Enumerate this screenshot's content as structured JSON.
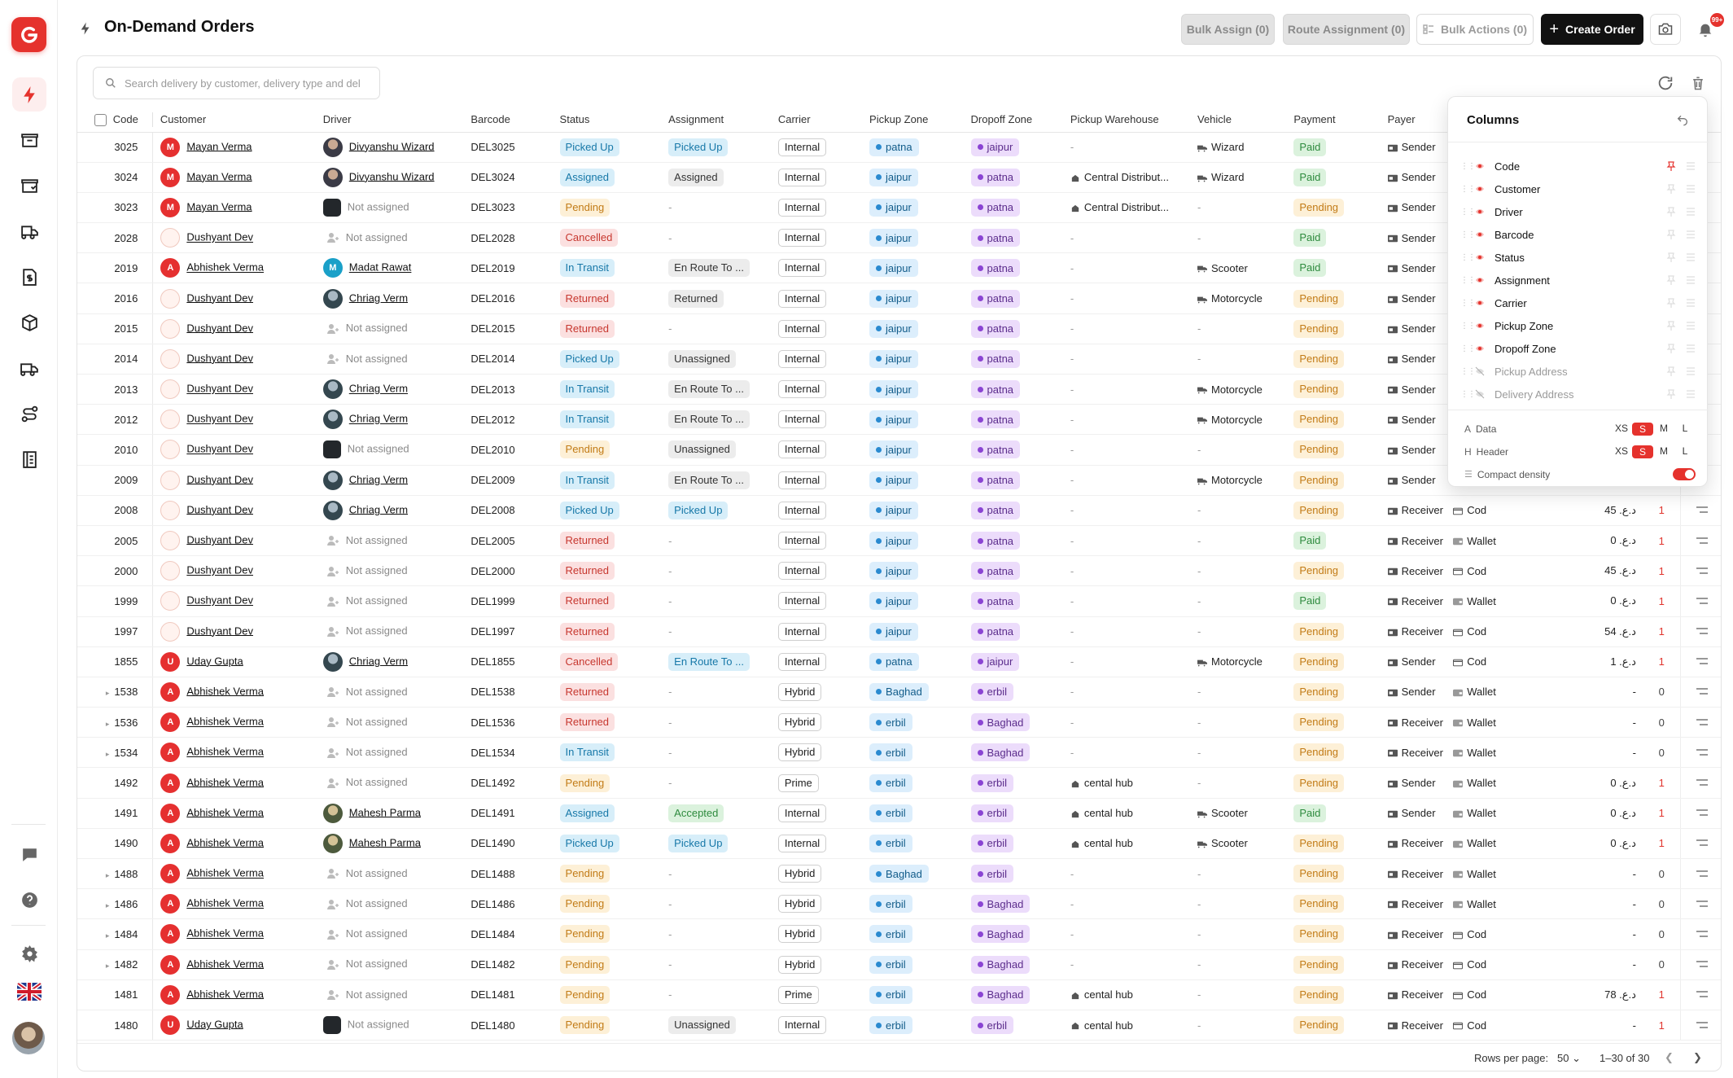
{
  "page": {
    "title": "On-Demand Orders"
  },
  "topbar": {
    "bulk_assign": "Bulk Assign (0)",
    "route_assignment": "Route Assignment (0)",
    "bulk_actions": "Bulk Actions (0)",
    "create_order": "Create Order",
    "notif_badge": "99+"
  },
  "search": {
    "placeholder": "Search delivery by customer, delivery type and del"
  },
  "table": {
    "headers": {
      "code": "Code",
      "customer": "Customer",
      "driver": "Driver",
      "barcode": "Barcode",
      "status": "Status",
      "assignment": "Assignment",
      "carrier": "Carrier",
      "pickup_zone": "Pickup Zone",
      "dropoff_zone": "Dropoff Zone",
      "pickup_warehouse": "Pickup Warehouse",
      "vehicle": "Vehicle",
      "payment": "Payment",
      "payer": "Payer"
    },
    "rows": [
      {
        "expand": false,
        "code": "3025",
        "cust": "Mayan Verma",
        "ci": "M",
        "cs": "red",
        "drv": "Divyanshu Wizard",
        "ds": "photo",
        "bar": "DEL3025",
        "st": "Picked Up",
        "sc": "Picked",
        "asg": "Picked Up",
        "ac": "blue",
        "car": "Internal",
        "pz": "patna",
        "dz": "jaipur",
        "wh": "-",
        "veh": "Wizard",
        "pay": "Paid",
        "payer": "Sender",
        "meth": "",
        "amt": "",
        "cnt": ""
      },
      {
        "expand": false,
        "code": "3024",
        "cust": "Mayan Verma",
        "ci": "M",
        "cs": "red",
        "drv": "Divyanshu Wizard",
        "ds": "photo",
        "bar": "DEL3024",
        "st": "Assigned",
        "sc": "Assigned",
        "asg": "Assigned",
        "ac": "gray",
        "car": "Internal",
        "pz": "jaipur",
        "dz": "patna",
        "wh": "Central Distribut...",
        "veh": "Wizard",
        "pay": "Paid",
        "payer": "Sender",
        "meth": "",
        "amt": "",
        "cnt": ""
      },
      {
        "expand": false,
        "code": "3023",
        "cust": "Mayan Verma",
        "ci": "M",
        "cs": "red",
        "drv": "Not assigned",
        "ds": "dark",
        "bar": "DEL3023",
        "st": "Pending",
        "sc": "Pending",
        "asg": "-",
        "ac": "",
        "car": "Internal",
        "pz": "jaipur",
        "dz": "patna",
        "wh": "Central Distribut...",
        "veh": "-",
        "pay": "Pending",
        "payer": "Sender",
        "meth": "",
        "amt": "",
        "cnt": ""
      },
      {
        "expand": false,
        "code": "2028",
        "cust": "Dushyant Dev",
        "ci": "",
        "cs": "pl",
        "drv": "Not assigned",
        "ds": "ghost",
        "bar": "DEL2028",
        "st": "Cancelled",
        "sc": "Cancelled",
        "asg": "-",
        "ac": "",
        "car": "Internal",
        "pz": "jaipur",
        "dz": "patna",
        "wh": "-",
        "veh": "-",
        "pay": "Paid",
        "payer": "Sender",
        "meth": "",
        "amt": "",
        "cnt": ""
      },
      {
        "expand": false,
        "code": "2019",
        "cust": "Abhishek Verma",
        "ci": "A",
        "cs": "red",
        "drv": "Madat Rawat",
        "ds": "teal",
        "bar": "DEL2019",
        "st": "In Transit",
        "sc": "Transit",
        "asg": "En Route To ...",
        "ac": "gray",
        "car": "Internal",
        "pz": "jaipur",
        "dz": "patna",
        "wh": "-",
        "veh": "Scooter",
        "pay": "Paid",
        "payer": "Sender",
        "meth": "",
        "amt": "",
        "cnt": ""
      },
      {
        "expand": false,
        "code": "2016",
        "cust": "Dushyant Dev",
        "ci": "",
        "cs": "pl",
        "drv": "Chriag Verm",
        "ds": "pinfo",
        "bar": "DEL2016",
        "st": "Returned",
        "sc": "Returned",
        "asg": "Returned",
        "ac": "gray",
        "car": "Internal",
        "pz": "jaipur",
        "dz": "patna",
        "wh": "-",
        "veh": "Motorcycle",
        "pay": "Pending",
        "payer": "Sender",
        "meth": "",
        "amt": "",
        "cnt": ""
      },
      {
        "expand": false,
        "code": "2015",
        "cust": "Dushyant Dev",
        "ci": "",
        "cs": "pl",
        "drv": "Not assigned",
        "ds": "ghost",
        "bar": "DEL2015",
        "st": "Returned",
        "sc": "Returned",
        "asg": "-",
        "ac": "",
        "car": "Internal",
        "pz": "jaipur",
        "dz": "patna",
        "wh": "-",
        "veh": "-",
        "pay": "Pending",
        "payer": "Sender",
        "meth": "",
        "amt": "",
        "cnt": ""
      },
      {
        "expand": false,
        "code": "2014",
        "cust": "Dushyant Dev",
        "ci": "",
        "cs": "pl",
        "drv": "Not assigned",
        "ds": "ghost",
        "bar": "DEL2014",
        "st": "Picked Up",
        "sc": "Picked",
        "asg": "Unassigned",
        "ac": "gray",
        "car": "Internal",
        "pz": "jaipur",
        "dz": "patna",
        "wh": "-",
        "veh": "-",
        "pay": "Pending",
        "payer": "Sender",
        "meth": "",
        "amt": "",
        "cnt": ""
      },
      {
        "expand": false,
        "code": "2013",
        "cust": "Dushyant Dev",
        "ci": "",
        "cs": "pl",
        "drv": "Chriag Verm",
        "ds": "pinfo",
        "bar": "DEL2013",
        "st": "In Transit",
        "sc": "Transit",
        "asg": "En Route To ...",
        "ac": "gray",
        "car": "Internal",
        "pz": "jaipur",
        "dz": "patna",
        "wh": "-",
        "veh": "Motorcycle",
        "pay": "Pending",
        "payer": "Sender",
        "meth": "",
        "amt": "",
        "cnt": ""
      },
      {
        "expand": false,
        "code": "2012",
        "cust": "Dushyant Dev",
        "ci": "",
        "cs": "pl",
        "drv": "Chriag Verm",
        "ds": "pinfo",
        "bar": "DEL2012",
        "st": "In Transit",
        "sc": "Transit",
        "asg": "En Route To ...",
        "ac": "gray",
        "car": "Internal",
        "pz": "jaipur",
        "dz": "patna",
        "wh": "-",
        "veh": "Motorcycle",
        "pay": "Pending",
        "payer": "Sender",
        "meth": "",
        "amt": "",
        "cnt": ""
      },
      {
        "expand": false,
        "code": "2010",
        "cust": "Dushyant Dev",
        "ci": "",
        "cs": "pl",
        "drv": "Not assigned",
        "ds": "dark",
        "bar": "DEL2010",
        "st": "Pending",
        "sc": "Pending",
        "asg": "Unassigned",
        "ac": "gray",
        "car": "Internal",
        "pz": "jaipur",
        "dz": "patna",
        "wh": "-",
        "veh": "-",
        "pay": "Pending",
        "payer": "Sender",
        "meth": "",
        "amt": "",
        "cnt": ""
      },
      {
        "expand": false,
        "code": "2009",
        "cust": "Dushyant Dev",
        "ci": "",
        "cs": "pl",
        "drv": "Chriag Verm",
        "ds": "pinfo",
        "bar": "DEL2009",
        "st": "In Transit",
        "sc": "Transit",
        "asg": "En Route To ...",
        "ac": "gray",
        "car": "Internal",
        "pz": "jaipur",
        "dz": "patna",
        "wh": "-",
        "veh": "Motorcycle",
        "pay": "Pending",
        "payer": "Sender",
        "meth": "",
        "amt": "",
        "cnt": ""
      },
      {
        "expand": false,
        "code": "2008",
        "cust": "Dushyant Dev",
        "ci": "",
        "cs": "pl",
        "drv": "Chriag Verm",
        "ds": "pinfo",
        "bar": "DEL2008",
        "st": "Picked Up",
        "sc": "Picked",
        "asg": "Picked Up",
        "ac": "blue",
        "car": "Internal",
        "pz": "jaipur",
        "dz": "patna",
        "wh": "-",
        "veh": "-",
        "pay": "Pending",
        "payer": "Receiver",
        "meth": "Cod",
        "amt": "45 .د.ع",
        "cnt": "1"
      },
      {
        "expand": false,
        "code": "2005",
        "cust": "Dushyant Dev",
        "ci": "",
        "cs": "pl",
        "drv": "Not assigned",
        "ds": "ghost",
        "bar": "DEL2005",
        "st": "Returned",
        "sc": "Returned",
        "asg": "-",
        "ac": "",
        "car": "Internal",
        "pz": "jaipur",
        "dz": "patna",
        "wh": "-",
        "veh": "-",
        "pay": "Paid",
        "payer": "Receiver",
        "meth": "Wallet",
        "amt": "0 .د.ع",
        "cnt": "1"
      },
      {
        "expand": false,
        "code": "2000",
        "cust": "Dushyant Dev",
        "ci": "",
        "cs": "pl",
        "drv": "Not assigned",
        "ds": "ghost",
        "bar": "DEL2000",
        "st": "Returned",
        "sc": "Returned",
        "asg": "-",
        "ac": "",
        "car": "Internal",
        "pz": "jaipur",
        "dz": "patna",
        "wh": "-",
        "veh": "-",
        "pay": "Pending",
        "payer": "Receiver",
        "meth": "Cod",
        "amt": "45 .د.ع",
        "cnt": "1"
      },
      {
        "expand": false,
        "code": "1999",
        "cust": "Dushyant Dev",
        "ci": "",
        "cs": "pl",
        "drv": "Not assigned",
        "ds": "ghost",
        "bar": "DEL1999",
        "st": "Returned",
        "sc": "Returned",
        "asg": "-",
        "ac": "",
        "car": "Internal",
        "pz": "jaipur",
        "dz": "patna",
        "wh": "-",
        "veh": "-",
        "pay": "Paid",
        "payer": "Receiver",
        "meth": "Wallet",
        "amt": "0 .د.ع",
        "cnt": "1"
      },
      {
        "expand": false,
        "code": "1997",
        "cust": "Dushyant Dev",
        "ci": "",
        "cs": "pl",
        "drv": "Not assigned",
        "ds": "ghost",
        "bar": "DEL1997",
        "st": "Returned",
        "sc": "Returned",
        "asg": "-",
        "ac": "",
        "car": "Internal",
        "pz": "jaipur",
        "dz": "patna",
        "wh": "-",
        "veh": "-",
        "pay": "Pending",
        "payer": "Receiver",
        "meth": "Cod",
        "amt": "54 .د.ع",
        "cnt": "1"
      },
      {
        "expand": false,
        "code": "1855",
        "cust": "Uday Gupta",
        "ci": "U",
        "cs": "red",
        "drv": "Chriag Verm",
        "ds": "pinfo",
        "bar": "DEL1855",
        "st": "Cancelled",
        "sc": "Cancelled",
        "asg": "En Route To ...",
        "ac": "blue",
        "car": "Internal",
        "pz": "patna",
        "dz": "jaipur",
        "wh": "-",
        "veh": "Motorcycle",
        "pay": "Pending",
        "payer": "Sender",
        "meth": "Cod",
        "amt": "1 .د.ع",
        "cnt": "1"
      },
      {
        "expand": true,
        "code": "1538",
        "cust": "Abhishek Verma",
        "ci": "A",
        "cs": "red",
        "drv": "Not assigned",
        "ds": "ghost",
        "bar": "DEL1538",
        "st": "Returned",
        "sc": "Returned",
        "asg": "-",
        "ac": "",
        "car": "Hybrid",
        "pz": "Baghad",
        "dz": "erbil",
        "wh": "-",
        "veh": "-",
        "pay": "Pending",
        "payer": "Sender",
        "meth": "Wallet",
        "amt": "-",
        "cnt": "0"
      },
      {
        "expand": true,
        "code": "1536",
        "cust": "Abhishek Verma",
        "ci": "A",
        "cs": "red",
        "drv": "Not assigned",
        "ds": "ghost",
        "bar": "DEL1536",
        "st": "Returned",
        "sc": "Returned",
        "asg": "-",
        "ac": "",
        "car": "Hybrid",
        "pz": "erbil",
        "dz": "Baghad",
        "wh": "-",
        "veh": "-",
        "pay": "Pending",
        "payer": "Receiver",
        "meth": "Wallet",
        "amt": "-",
        "cnt": "0"
      },
      {
        "expand": true,
        "code": "1534",
        "cust": "Abhishek Verma",
        "ci": "A",
        "cs": "red",
        "drv": "Not assigned",
        "ds": "ghost",
        "bar": "DEL1534",
        "st": "In Transit",
        "sc": "Transit",
        "asg": "-",
        "ac": "",
        "car": "Hybrid",
        "pz": "erbil",
        "dz": "Baghad",
        "wh": "-",
        "veh": "-",
        "pay": "Pending",
        "payer": "Receiver",
        "meth": "Wallet",
        "amt": "-",
        "cnt": "0"
      },
      {
        "expand": false,
        "code": "1492",
        "cust": "Abhishek Verma",
        "ci": "A",
        "cs": "red",
        "drv": "Not assigned",
        "ds": "ghost",
        "bar": "DEL1492",
        "st": "Pending",
        "sc": "Pending",
        "asg": "-",
        "ac": "",
        "car": "Prime",
        "pz": "erbil",
        "dz": "erbil",
        "wh": "cental hub",
        "veh": "-",
        "pay": "Pending",
        "payer": "Sender",
        "meth": "Wallet",
        "amt": "0 .د.ع",
        "cnt": "1"
      },
      {
        "expand": false,
        "code": "1491",
        "cust": "Abhishek Verma",
        "ci": "A",
        "cs": "red",
        "drv": "Mahesh Parma",
        "ds": "land",
        "bar": "DEL1491",
        "st": "Assigned",
        "sc": "Assigned",
        "asg": "Accepted",
        "ac": "green",
        "car": "Internal",
        "pz": "erbil",
        "dz": "erbil",
        "wh": "cental hub",
        "veh": "Scooter",
        "pay": "Paid",
        "payer": "Sender",
        "meth": "Wallet",
        "amt": "0 .د.ع",
        "cnt": "1"
      },
      {
        "expand": false,
        "code": "1490",
        "cust": "Abhishek Verma",
        "ci": "A",
        "cs": "red",
        "drv": "Mahesh Parma",
        "ds": "land",
        "bar": "DEL1490",
        "st": "Picked Up",
        "sc": "Picked",
        "asg": "Picked Up",
        "ac": "blue",
        "car": "Internal",
        "pz": "erbil",
        "dz": "erbil",
        "wh": "cental hub",
        "veh": "Scooter",
        "pay": "Pending",
        "payer": "Receiver",
        "meth": "Wallet",
        "amt": "0 .د.ع",
        "cnt": "1"
      },
      {
        "expand": true,
        "code": "1488",
        "cust": "Abhishek Verma",
        "ci": "A",
        "cs": "red",
        "drv": "Not assigned",
        "ds": "ghost",
        "bar": "DEL1488",
        "st": "Pending",
        "sc": "Pending",
        "asg": "-",
        "ac": "",
        "car": "Hybrid",
        "pz": "Baghad",
        "dz": "erbil",
        "wh": "-",
        "veh": "-",
        "pay": "Pending",
        "payer": "Receiver",
        "meth": "Wallet",
        "amt": "-",
        "cnt": "0"
      },
      {
        "expand": true,
        "code": "1486",
        "cust": "Abhishek Verma",
        "ci": "A",
        "cs": "red",
        "drv": "Not assigned",
        "ds": "ghost",
        "bar": "DEL1486",
        "st": "Pending",
        "sc": "Pending",
        "asg": "-",
        "ac": "",
        "car": "Hybrid",
        "pz": "erbil",
        "dz": "Baghad",
        "wh": "-",
        "veh": "-",
        "pay": "Pending",
        "payer": "Receiver",
        "meth": "Wallet",
        "amt": "-",
        "cnt": "0"
      },
      {
        "expand": true,
        "code": "1484",
        "cust": "Abhishek Verma",
        "ci": "A",
        "cs": "red",
        "drv": "Not assigned",
        "ds": "ghost",
        "bar": "DEL1484",
        "st": "Pending",
        "sc": "Pending",
        "asg": "-",
        "ac": "",
        "car": "Hybrid",
        "pz": "erbil",
        "dz": "Baghad",
        "wh": "-",
        "veh": "-",
        "pay": "Pending",
        "payer": "Receiver",
        "meth": "Cod",
        "amt": "-",
        "cnt": "0"
      },
      {
        "expand": true,
        "code": "1482",
        "cust": "Abhishek Verma",
        "ci": "A",
        "cs": "red",
        "drv": "Not assigned",
        "ds": "ghost",
        "bar": "DEL1482",
        "st": "Pending",
        "sc": "Pending",
        "asg": "-",
        "ac": "",
        "car": "Hybrid",
        "pz": "erbil",
        "dz": "Baghad",
        "wh": "-",
        "veh": "-",
        "pay": "Pending",
        "payer": "Receiver",
        "meth": "Cod",
        "amt": "-",
        "cnt": "0"
      },
      {
        "expand": false,
        "code": "1481",
        "cust": "Abhishek Verma",
        "ci": "A",
        "cs": "red",
        "drv": "Not assigned",
        "ds": "ghost",
        "bar": "DEL1481",
        "st": "Pending",
        "sc": "Pending",
        "asg": "-",
        "ac": "",
        "car": "Prime",
        "pz": "erbil",
        "dz": "Baghad",
        "wh": "cental hub",
        "veh": "-",
        "pay": "Pending",
        "payer": "Receiver",
        "meth": "Cod",
        "amt": "78 .د.ع",
        "cnt": "1"
      },
      {
        "expand": false,
        "code": "1480",
        "cust": "Uday Gupta",
        "ci": "U",
        "cs": "red",
        "drv": "Not assigned",
        "ds": "dark",
        "bar": "DEL1480",
        "st": "Pending",
        "sc": "Pending",
        "asg": "Unassigned",
        "ac": "gray",
        "car": "Internal",
        "pz": "erbil",
        "dz": "erbil",
        "wh": "cental hub",
        "veh": "-",
        "pay": "Pending",
        "payer": "Receiver",
        "meth": "Cod",
        "amt": "-",
        "cnt": "1"
      }
    ]
  },
  "columns_panel": {
    "title": "Columns",
    "items": [
      {
        "label": "Code",
        "visible": true
      },
      {
        "label": "Customer",
        "visible": true
      },
      {
        "label": "Driver",
        "visible": true
      },
      {
        "label": "Barcode",
        "visible": true
      },
      {
        "label": "Status",
        "visible": true
      },
      {
        "label": "Assignment",
        "visible": true
      },
      {
        "label": "Carrier",
        "visible": true
      },
      {
        "label": "Pickup Zone",
        "visible": true
      },
      {
        "label": "Dropoff Zone",
        "visible": true
      },
      {
        "label": "Pickup Address",
        "visible": false
      },
      {
        "label": "Delivery Address",
        "visible": false
      }
    ],
    "data_label": "Data",
    "header_label": "Header",
    "sizes": [
      "XS",
      "S",
      "M",
      "L"
    ],
    "data_size": "S",
    "header_size": "S",
    "compact_label": "Compact density",
    "compact_on": true
  },
  "footer": {
    "rows_per_page_label": "Rows per page:",
    "rows_per_page": "50",
    "range": "1–30 of 30"
  },
  "colors": {
    "brand": "#e5322d",
    "primary_button": "#111111"
  }
}
